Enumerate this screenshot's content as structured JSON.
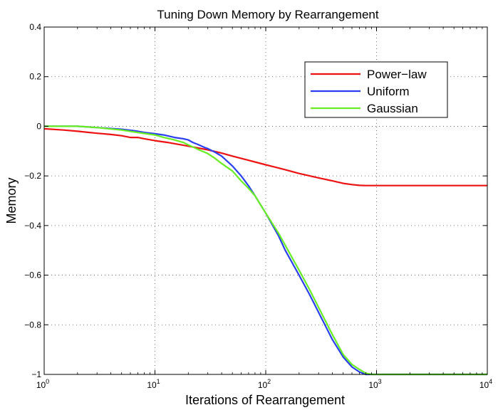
{
  "chart_data": {
    "type": "line",
    "title": "Tuning Down Memory by Rearrangement",
    "xlabel": "Iterations of Rearrangement",
    "ylabel": "Memory",
    "xscale": "log",
    "xlim": [
      1,
      10000
    ],
    "ylim": [
      -1,
      0.4
    ],
    "grid": true,
    "legend_position": "top-right",
    "x_ticks": [
      {
        "value": 1,
        "base": "10",
        "exp": "0"
      },
      {
        "value": 10,
        "base": "10",
        "exp": "1"
      },
      {
        "value": 100,
        "base": "10",
        "exp": "2"
      },
      {
        "value": 1000,
        "base": "10",
        "exp": "3"
      },
      {
        "value": 10000,
        "base": "10",
        "exp": "4"
      }
    ],
    "y_ticks": [
      {
        "value": 0.4,
        "label": "0.4"
      },
      {
        "value": 0.2,
        "label": "0.2"
      },
      {
        "value": 0,
        "label": "0"
      },
      {
        "value": -0.2,
        "label": "−0.2"
      },
      {
        "value": -0.4,
        "label": "−0.4"
      },
      {
        "value": -0.6,
        "label": "−0.6"
      },
      {
        "value": -0.8,
        "label": "−0.8"
      },
      {
        "value": -1,
        "label": "−1"
      }
    ],
    "series": [
      {
        "name": "Power−law",
        "color": "#ee1111",
        "x": [
          1,
          1.5,
          2,
          3,
          4,
          5,
          6,
          7,
          8,
          10,
          13,
          15,
          20,
          30,
          40,
          50,
          70,
          100,
          150,
          200,
          300,
          400,
          500,
          600,
          700,
          800,
          1000,
          2000,
          5000,
          10000
        ],
        "y": [
          -0.01,
          -0.015,
          -0.02,
          -0.028,
          -0.033,
          -0.038,
          -0.045,
          -0.045,
          -0.05,
          -0.058,
          -0.065,
          -0.07,
          -0.08,
          -0.095,
          -0.108,
          -0.12,
          -0.137,
          -0.155,
          -0.175,
          -0.19,
          -0.208,
          -0.22,
          -0.23,
          -0.235,
          -0.238,
          -0.239,
          -0.239,
          -0.239,
          -0.239,
          -0.239
        ]
      },
      {
        "name": "Uniform",
        "color": "#2a3ff0",
        "x": [
          1,
          2,
          3,
          5,
          7,
          8,
          10,
          12,
          15,
          18,
          20,
          22,
          25,
          28,
          30,
          35,
          40,
          50,
          60,
          70,
          80,
          100,
          130,
          150,
          200,
          250,
          300,
          400,
          500,
          600,
          700,
          800,
          900,
          1000,
          2000,
          5000,
          10000
        ],
        "y": [
          0,
          0,
          -0.005,
          -0.012,
          -0.02,
          -0.025,
          -0.03,
          -0.035,
          -0.045,
          -0.05,
          -0.055,
          -0.065,
          -0.075,
          -0.085,
          -0.09,
          -0.105,
          -0.12,
          -0.16,
          -0.2,
          -0.24,
          -0.28,
          -0.35,
          -0.44,
          -0.5,
          -0.6,
          -0.68,
          -0.75,
          -0.86,
          -0.93,
          -0.97,
          -0.99,
          -1,
          -1,
          -1,
          -1,
          -1,
          -1
        ]
      },
      {
        "name": "Gaussian",
        "color": "#66ee22",
        "x": [
          1,
          2,
          3,
          5,
          7,
          10,
          12,
          15,
          18,
          20,
          25,
          30,
          35,
          40,
          50,
          60,
          70,
          80,
          100,
          130,
          150,
          200,
          250,
          300,
          400,
          500,
          600,
          700,
          800,
          900,
          1000,
          2000,
          5000,
          10000
        ],
        "y": [
          0,
          0,
          -0.005,
          -0.015,
          -0.025,
          -0.035,
          -0.045,
          -0.055,
          -0.065,
          -0.075,
          -0.095,
          -0.11,
          -0.13,
          -0.15,
          -0.18,
          -0.22,
          -0.25,
          -0.28,
          -0.35,
          -0.43,
          -0.48,
          -0.58,
          -0.66,
          -0.73,
          -0.84,
          -0.92,
          -0.96,
          -0.98,
          -0.995,
          -1,
          -1,
          -1,
          -1,
          -1
        ]
      }
    ]
  }
}
